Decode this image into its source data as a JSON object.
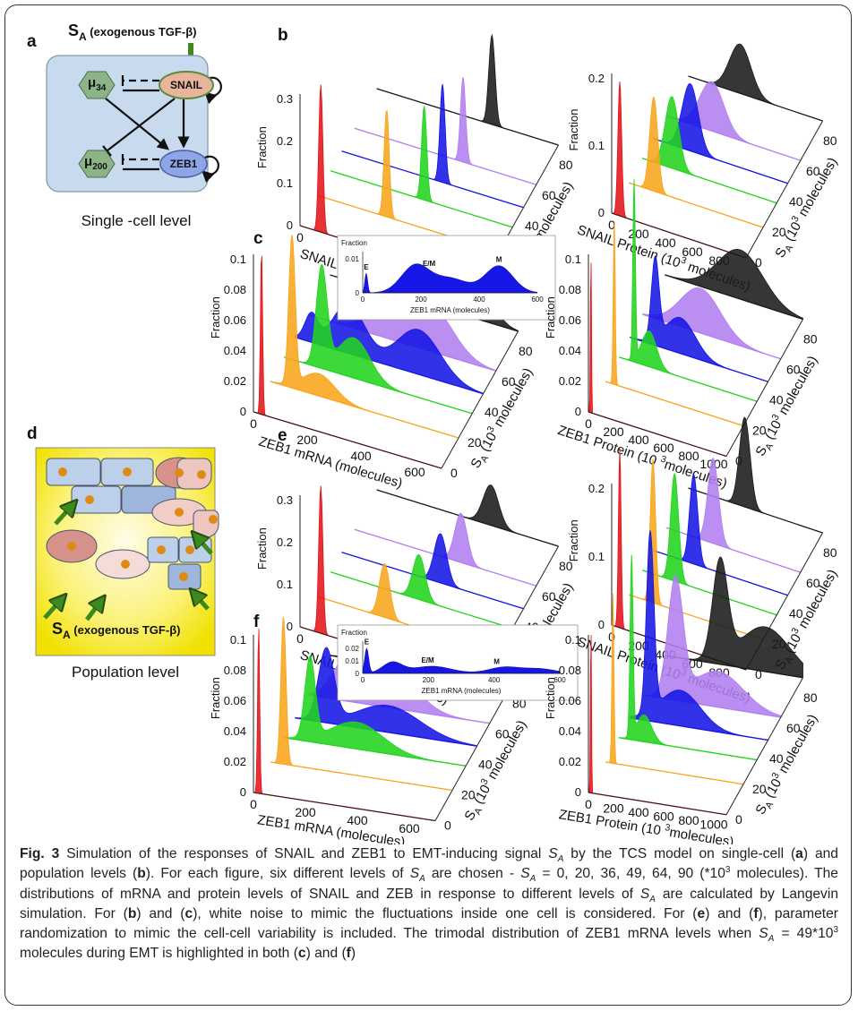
{
  "panel_a": {
    "label": "a",
    "signal": {
      "S": "S",
      "sub": "A",
      "text": " (exogenous TGF-β)"
    },
    "nodes": {
      "mu34": {
        "mu": "μ",
        "sub": "34"
      },
      "snail": "SNAIL",
      "mu200": {
        "mu": "μ",
        "sub": "200"
      },
      "zeb1": "ZEB1"
    },
    "caption": "Single -cell level"
  },
  "panel_d": {
    "label": "d",
    "signal": {
      "S": "S",
      "sub": "A",
      "text": " (exogenous TGF-β)"
    },
    "caption": "Population level"
  },
  "rows": [
    {
      "label": "b",
      "plots": [
        {
          "ylabel": "Fraction",
          "yticks": [
            "0",
            "0.1",
            "0.2",
            "0.3"
          ],
          "xticks": [
            "0",
            "200",
            "400",
            "600"
          ],
          "xlabel": {
            "pre": "SNAIL mRNA (molecules)"
          },
          "zticks": [
            "0",
            "20",
            "40",
            "60",
            "80"
          ],
          "zlabel": {
            "S": "S",
            "sub": "A",
            "pre": " (10",
            "sup": "3",
            "post": " molecules)"
          }
        },
        {
          "ylabel": "Fraction",
          "yticks": [
            "0",
            "0.1",
            "0.2"
          ],
          "xticks": [
            "0",
            "200",
            "400",
            "600",
            "800"
          ],
          "xlabel": {
            "pre": "SNAIL Protein (10",
            "sup": "3",
            "post": " molecules)"
          },
          "zticks": [
            "0",
            "20",
            "40",
            "60",
            "80"
          ],
          "zlabel": {
            "S": "S",
            "sub": "A",
            "pre": " (10",
            "sup": "3",
            "post": " molecules)"
          }
        }
      ]
    },
    {
      "label": "c",
      "plots": [
        {
          "ylabel": "Fraction",
          "yticks": [
            "0",
            "0.02",
            "0.04",
            "0.06",
            "0.08",
            "0.1"
          ],
          "xticks": [
            "0",
            "200",
            "400",
            "600"
          ],
          "xlabel": {
            "pre": "ZEB1 mRNA (molecules)"
          },
          "zticks": [
            "0",
            "20",
            "40",
            "60",
            "80"
          ],
          "zlabel": {
            "S": "S",
            "sub": "A",
            "pre": " (10",
            "sup": "3",
            "post": " molecules)"
          },
          "inset": {
            "ylabel": "Fraction",
            "yticks": [
              "0",
              "0.01"
            ],
            "xticks": [
              "0",
              "200",
              "400",
              "600"
            ],
            "xlabel": "ZEB1 mRNA (molecules)",
            "marks": [
              "E",
              "E/M",
              "M"
            ]
          }
        },
        {
          "ylabel": "Fraction",
          "yticks": [
            "0",
            "0.02",
            "0.04",
            "0.06",
            "0.08",
            "0.1"
          ],
          "xticks": [
            "0",
            "200",
            "400",
            "600",
            "800",
            "1000"
          ],
          "xlabel": {
            "pre": "ZEB1 Protein (10 ",
            "sup": "3",
            "post": "molecules)"
          },
          "zticks": [
            "0",
            "20",
            "40",
            "60",
            "80"
          ],
          "zlabel": {
            "S": "S",
            "sub": "A",
            "pre": " (10",
            "sup": "3",
            "post": " molecules)"
          }
        }
      ]
    },
    {
      "label": "e",
      "plots": [
        {
          "ylabel": "Fraction",
          "yticks": [
            "0",
            "0.1",
            "0.2",
            "0.3"
          ],
          "xticks": [
            "0",
            "200",
            "400",
            "600"
          ],
          "xlabel": {
            "pre": "SNAIL mRNA (molecules)"
          },
          "zticks": [
            "0",
            "20",
            "40",
            "60",
            "80"
          ],
          "zlabel": {
            "S": "S",
            "sub": "A",
            "pre": " (10",
            "sup": "3",
            "post": " molecules)"
          }
        },
        {
          "ylabel": "Fraction",
          "yticks": [
            "0",
            "0.1",
            "0.2"
          ],
          "xticks": [
            "0",
            "200",
            "400",
            "600",
            "800"
          ],
          "xlabel": {
            "pre": "SNAIL Protein (10",
            "sup": "3",
            "post": " molecules)"
          },
          "zticks": [
            "0",
            "20",
            "40",
            "60",
            "80"
          ],
          "zlabel": {
            "S": "S",
            "sub": "A",
            "pre": " (10",
            "sup": "3",
            "post": " molecules)"
          }
        }
      ]
    },
    {
      "label": "f",
      "plots": [
        {
          "ylabel": "Fraction",
          "yticks": [
            "0",
            "0.02",
            "0.04",
            "0.06",
            "0.08",
            "0.1"
          ],
          "xticks": [
            "0",
            "200",
            "400",
            "600"
          ],
          "xlabel": {
            "pre": "ZEB1 mRNA (molecules)"
          },
          "zticks": [
            "0",
            "20",
            "40",
            "60",
            "80"
          ],
          "zlabel": {
            "S": "S",
            "sub": "A",
            "pre": " (10",
            "sup": "3",
            "post": " molecules)"
          },
          "inset": {
            "ylabel": "Fraction",
            "yticks": [
              "0",
              "0.01",
              "0.02"
            ],
            "xticks": [
              "0",
              "200",
              "400",
              "600"
            ],
            "xlabel": "ZEB1 mRNA (molecules)",
            "marks": [
              "E",
              "E/M",
              "M"
            ]
          }
        },
        {
          "ylabel": "Fraction",
          "yticks": [
            "0",
            "0.02",
            "0.04",
            "0.06",
            "0.08",
            "0.1"
          ],
          "xticks": [
            "0",
            "200",
            "400",
            "600",
            "800",
            "1000"
          ],
          "xlabel": {
            "pre": "ZEB1 Protein (10 ",
            "sup": "3",
            "post": "molecules)"
          },
          "zticks": [
            "0",
            "20",
            "40",
            "60",
            "80"
          ],
          "zlabel": {
            "S": "S",
            "sub": "A",
            "pre": " (10",
            "sup": "3",
            "post": " molecules)"
          }
        }
      ]
    }
  ],
  "caption": [
    {
      "b": "Fig. 3"
    },
    {
      "t": " Simulation of the responses of SNAIL and ZEB1 to EMT-inducing signal "
    },
    {
      "i": "S"
    },
    {
      "sub": "A"
    },
    {
      "t": " by the TCS model on single-cell ("
    },
    {
      "b": "a"
    },
    {
      "t": ") and population levels ("
    },
    {
      "b": "b"
    },
    {
      "t": "). For each figure, six different levels of "
    },
    {
      "i": "S"
    },
    {
      "sub": "A"
    },
    {
      "t": " are chosen - "
    },
    {
      "i": "S"
    },
    {
      "sub": "A"
    },
    {
      "t": " = 0, 20, 36, 49, 64, 90 (*10"
    },
    {
      "sup": "3"
    },
    {
      "t": " molecules). The distributions of mRNA and protein levels of SNAIL and ZEB in response to different levels of "
    },
    {
      "i": "S"
    },
    {
      "sub": "A"
    },
    {
      "t": " are calculated by Langevin simulation. For ("
    },
    {
      "b": "b"
    },
    {
      "t": ") and ("
    },
    {
      "b": "c"
    },
    {
      "t": "), white noise to mimic the fluctuations inside one cell is considered. For ("
    },
    {
      "b": "e"
    },
    {
      "t": ") and ("
    },
    {
      "b": "f"
    },
    {
      "t": "), parameter randomization to mimic the cell-cell variability is included. The trimodal distribution of ZEB1 mRNA levels when "
    },
    {
      "i": "S"
    },
    {
      "sub": "A"
    },
    {
      "t": " = 49*10"
    },
    {
      "sup": "3"
    },
    {
      "t": " molecules during EMT is highlighted in both ("
    },
    {
      "b": "c"
    },
    {
      "t": ") and ("
    },
    {
      "b": "f"
    },
    {
      "t": ")"
    }
  ]
}
